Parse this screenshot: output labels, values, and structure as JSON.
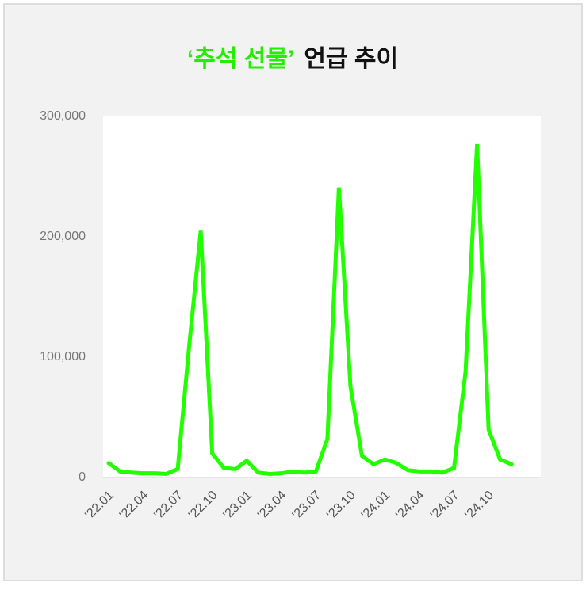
{
  "chart_data": {
    "type": "line",
    "title_highlight": "‘추석 선물’",
    "title": "언급 추이",
    "title_highlight_color": "#22ee00",
    "categories": [
      "'22.01",
      null,
      null,
      "'22.04",
      null,
      null,
      "'22.07",
      null,
      null,
      "'22.10",
      null,
      null,
      "'23.01",
      null,
      null,
      "'23.04",
      null,
      null,
      "'23.07",
      null,
      null,
      "'23.10",
      null,
      null,
      "'24.01",
      null,
      null,
      "'24.04",
      null,
      null,
      "'24.07",
      null,
      null,
      "'24.10",
      null,
      null
    ],
    "values": [
      12000,
      5000,
      4000,
      3500,
      3500,
      3000,
      7000,
      110000,
      205000,
      20000,
      8000,
      7000,
      14000,
      4000,
      3000,
      3500,
      5000,
      4000,
      5000,
      32000,
      241000,
      76000,
      18000,
      11000,
      15000,
      12000,
      6000,
      5000,
      5000,
      4000,
      8000,
      88000,
      277000,
      40000,
      15000,
      11000
    ],
    "color": "#22ff00",
    "ylim": [
      0,
      300000
    ],
    "yticks": [
      {
        "value": 0,
        "label": "0"
      },
      {
        "value": 100000,
        "label": "100,000"
      },
      {
        "value": 200000,
        "label": "200,000"
      },
      {
        "value": 300000,
        "label": "300,000"
      }
    ]
  }
}
